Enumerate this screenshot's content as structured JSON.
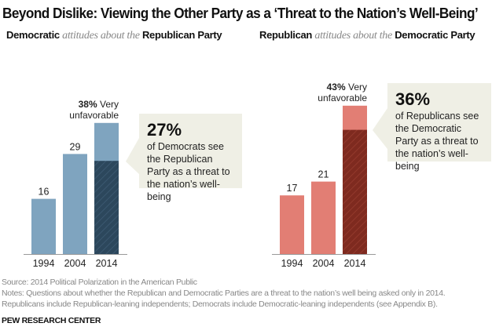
{
  "title": "Beyond Dislike: Viewing the Other Party as a ‘Threat to the Nation’s Well-Being’",
  "chart_data": [
    {
      "type": "bar",
      "subtitle": {
        "group": "Democratic",
        "middle": "attitudes about the",
        "target": "Republican Party"
      },
      "categories": [
        "1994",
        "2004",
        "2014"
      ],
      "values": [
        16,
        29,
        38
      ],
      "value_labels": [
        "16",
        "29",
        ""
      ],
      "top_label": {
        "value": "38%",
        "text": " Very",
        "line2": "unfavorable"
      },
      "threat_value": 27,
      "callout": {
        "big": "27%",
        "text": "of Democrats see the Republican Party as a threat to the nation’s well-being"
      },
      "colors": {
        "bar": "#7fa4bf",
        "threat": "#2c475c"
      }
    },
    {
      "type": "bar",
      "subtitle": {
        "group": "Republican",
        "middle": "attitudes about the",
        "target": "Democratic Party"
      },
      "categories": [
        "1994",
        "2004",
        "2014"
      ],
      "values": [
        17,
        21,
        43
      ],
      "value_labels": [
        "17",
        "21",
        ""
      ],
      "top_label": {
        "value": "43%",
        "text": " Very",
        "line2": "unfavorable"
      },
      "threat_value": 36,
      "callout": {
        "big": "36%",
        "text": "of Republicans see the Democratic Party as a threat to the nation’s well-being"
      },
      "colors": {
        "bar": "#e27e74",
        "threat": "#7e2a1f"
      }
    }
  ],
  "source": "Source: 2014 Political Polarization in the American Public",
  "notes1": "Notes: Questions about whether the Republican and Democratic Parties are a threat to the nation’s well being asked only in 2014.",
  "notes2": "Republicans include Republican-leaning independents; Democrats include Democratic-leaning independents (see Appendix B).",
  "brand": "PEW RESEARCH CENTER",
  "callout_bg": "#efefe5"
}
